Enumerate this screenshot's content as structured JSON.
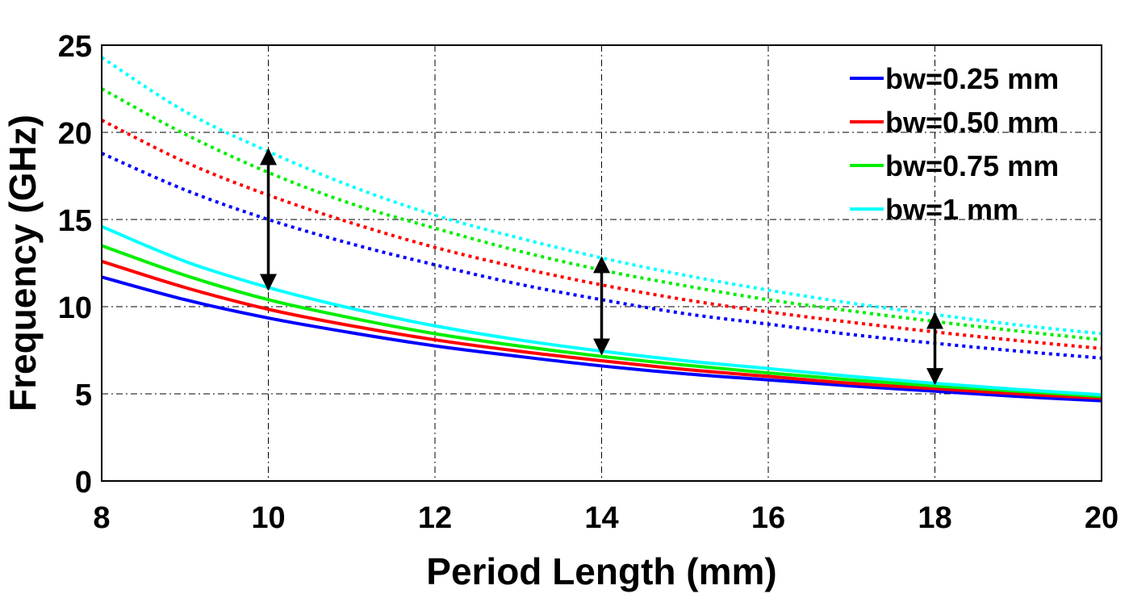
{
  "chart_data": {
    "type": "line",
    "title": "",
    "xlabel": "Period Length (mm)",
    "ylabel": "Frequency (GHz)",
    "xlim": [
      8,
      20
    ],
    "ylim": [
      0,
      25
    ],
    "xticks": [
      8,
      10,
      12,
      14,
      16,
      18,
      20
    ],
    "yticks": [
      0,
      5,
      10,
      15,
      20,
      25
    ],
    "grid": true,
    "legend_position": "top-right",
    "x": [
      8,
      9,
      10,
      11,
      12,
      13,
      14,
      15,
      16,
      17,
      18,
      19,
      20
    ],
    "series": [
      {
        "name": "bw=0.25 mm",
        "color": "#0000ff",
        "lower_solid": [
          11.7,
          10.4,
          9.35,
          8.5,
          7.75,
          7.15,
          6.6,
          6.15,
          5.8,
          5.45,
          5.15,
          4.85,
          4.6
        ],
        "upper_dotted": [
          18.8,
          16.7,
          15.0,
          13.6,
          12.4,
          11.3,
          10.4,
          9.6,
          9.0,
          8.4,
          7.9,
          7.45,
          7.05
        ]
      },
      {
        "name": "bw=0.50 mm",
        "color": "#ff0000",
        "lower_solid": [
          12.6,
          11.1,
          9.85,
          8.9,
          8.1,
          7.45,
          6.9,
          6.4,
          6.0,
          5.6,
          5.3,
          5.0,
          4.75
        ],
        "upper_dotted": [
          20.7,
          18.3,
          16.4,
          14.8,
          13.4,
          12.25,
          11.25,
          10.4,
          9.7,
          9.1,
          8.55,
          8.05,
          7.6
        ]
      },
      {
        "name": "bw=0.75 mm",
        "color": "#00ee00",
        "lower_solid": [
          13.5,
          11.8,
          10.4,
          9.35,
          8.45,
          7.75,
          7.15,
          6.65,
          6.2,
          5.8,
          5.45,
          5.15,
          4.85
        ],
        "upper_dotted": [
          22.5,
          19.9,
          17.7,
          15.9,
          14.5,
          13.2,
          12.1,
          11.2,
          10.4,
          9.75,
          9.15,
          8.6,
          8.1
        ]
      },
      {
        "name": "bw=1 mm",
        "color": "#00ffff",
        "lower_solid": [
          14.6,
          12.6,
          11.1,
          9.9,
          8.9,
          8.1,
          7.45,
          6.9,
          6.45,
          6.0,
          5.6,
          5.25,
          4.95
        ],
        "upper_dotted": [
          24.3,
          21.2,
          18.9,
          16.9,
          15.25,
          13.95,
          12.8,
          11.8,
          10.95,
          10.2,
          9.55,
          8.95,
          8.45
        ]
      }
    ],
    "annotations": [
      {
        "type": "double-arrow",
        "x": 10,
        "y_from": 11.0,
        "y_to": 19.0
      },
      {
        "type": "double-arrow",
        "x": 14,
        "y_from": 7.3,
        "y_to": 12.8
      },
      {
        "type": "double-arrow",
        "x": 18,
        "y_from": 5.6,
        "y_to": 9.6
      }
    ]
  }
}
